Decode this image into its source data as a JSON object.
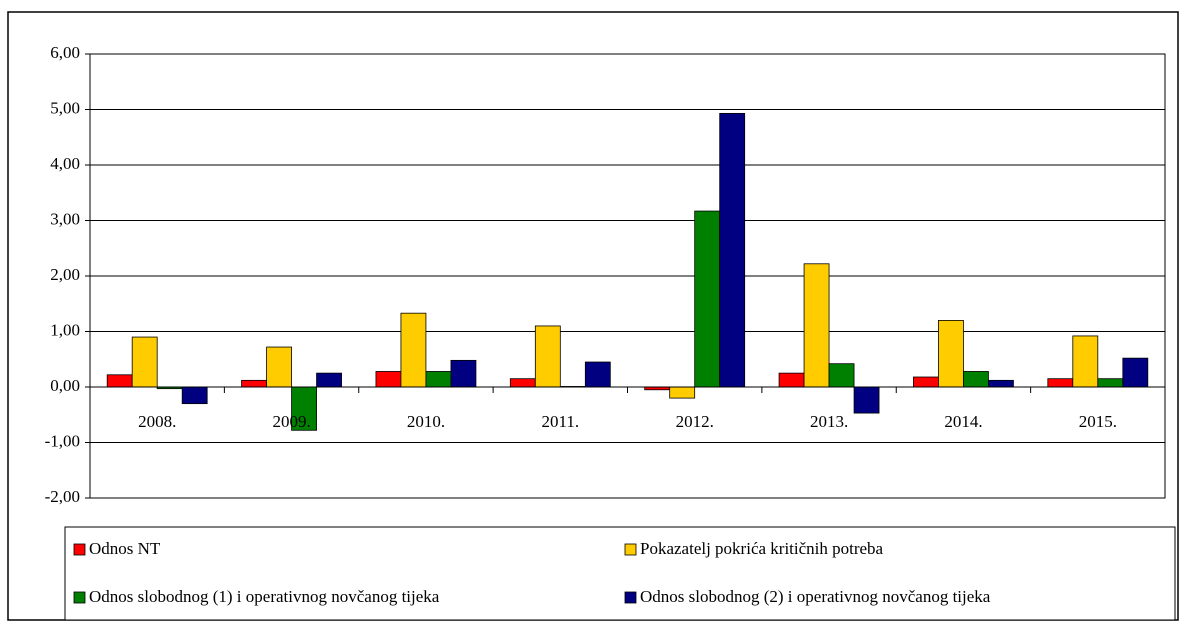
{
  "chart_data": {
    "type": "bar",
    "categories": [
      "2008.",
      "2009.",
      "2010.",
      "2011.",
      "2012.",
      "2013.",
      "2014.",
      "2015."
    ],
    "series": [
      {
        "name": "Odnos NT",
        "color": "#ff0000",
        "values": [
          0.22,
          0.12,
          0.28,
          0.15,
          -0.05,
          0.25,
          0.18,
          0.15
        ]
      },
      {
        "name": "Pokazatelj pokrića kritičnih potreba",
        "color": "#ffcc00",
        "values": [
          0.9,
          0.72,
          1.33,
          1.1,
          -0.2,
          2.22,
          1.2,
          0.92
        ]
      },
      {
        "name": "Odnos slobodnog (1) i operativnog novčanog tijeka",
        "color": "#008000",
        "values": [
          -0.03,
          -0.78,
          0.28,
          0.01,
          3.17,
          0.42,
          0.28,
          0.15
        ]
      },
      {
        "name": "Odnos slobodnog (2) i operativnog novčanog tijeka",
        "color": "#000080",
        "values": [
          -0.3,
          0.25,
          0.48,
          0.45,
          4.93,
          -0.47,
          0.12,
          0.52
        ]
      }
    ],
    "ylim": [
      -2,
      6
    ],
    "yticks": [
      {
        "value": -2,
        "label": "-2,00"
      },
      {
        "value": -1,
        "label": "-1,00"
      },
      {
        "value": 0,
        "label": "0,00"
      },
      {
        "value": 1,
        "label": "1,00"
      },
      {
        "value": 2,
        "label": "2,00"
      },
      {
        "value": 3,
        "label": "3,00"
      },
      {
        "value": 4,
        "label": "4,00"
      },
      {
        "value": 5,
        "label": "5,00"
      },
      {
        "value": 6,
        "label": "6,00"
      }
    ],
    "grid": true,
    "legend": "bottom"
  }
}
